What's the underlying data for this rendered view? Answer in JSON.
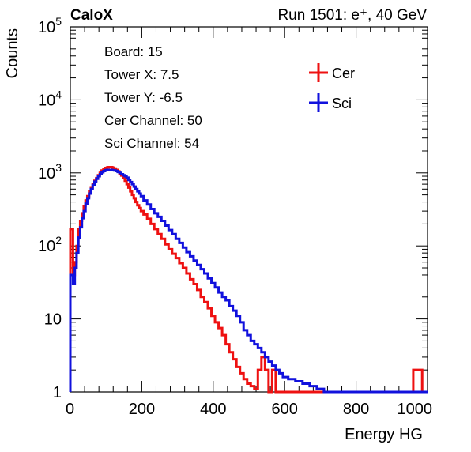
{
  "header": {
    "left_label": "CaloX",
    "right_label": "Run 1501: e⁺, 40 GeV"
  },
  "info_lines": [
    "Board: 15",
    "Tower X: 7.5",
    "Tower Y: -6.5",
    "Cer Channel: 50",
    "Sci Channel: 54"
  ],
  "chart_data": {
    "type": "line",
    "title": "",
    "xlabel": "Energy HG",
    "ylabel": "Counts",
    "xlim": [
      0,
      1000
    ],
    "ylim": [
      1,
      100000
    ],
    "y_scale": "log",
    "x_ticks": [
      0,
      200,
      400,
      600,
      800,
      1000
    ],
    "x_tick_labels": [
      "0",
      "200",
      "400",
      "600",
      "800",
      "1000"
    ],
    "y_ticks": [
      1,
      10,
      100,
      1000,
      10000,
      100000
    ],
    "y_tick_labels": [
      "1",
      "10",
      "10^2",
      "10^3",
      "10^4",
      "10^5"
    ],
    "legend_position": "top-right",
    "series": [
      {
        "name": "Cer",
        "color": "#ee1111",
        "x": [
          5,
          10,
          15,
          20,
          25,
          30,
          35,
          40,
          45,
          50,
          55,
          60,
          65,
          70,
          75,
          80,
          85,
          90,
          95,
          100,
          105,
          110,
          115,
          120,
          125,
          130,
          135,
          140,
          145,
          150,
          155,
          160,
          165,
          170,
          175,
          180,
          185,
          190,
          195,
          200,
          210,
          220,
          230,
          240,
          250,
          260,
          270,
          280,
          290,
          300,
          310,
          320,
          330,
          340,
          350,
          360,
          370,
          380,
          390,
          400,
          410,
          420,
          430,
          440,
          450,
          460,
          470,
          480,
          490,
          500,
          510,
          520,
          530,
          540,
          550,
          560,
          570,
          580,
          590,
          600,
          620,
          640,
          660,
          680,
          700,
          750,
          800,
          850,
          900,
          950,
          970,
          1000
        ],
        "values": [
          170,
          40,
          60,
          100,
          170,
          220,
          280,
          350,
          420,
          480,
          560,
          620,
          700,
          780,
          850,
          930,
          1000,
          1080,
          1130,
          1170,
          1190,
          1200,
          1200,
          1180,
          1150,
          1100,
          1050,
          980,
          920,
          850,
          780,
          700,
          630,
          560,
          500,
          450,
          400,
          360,
          330,
          300,
          270,
          235,
          200,
          170,
          145,
          125,
          105,
          90,
          78,
          68,
          58,
          50,
          42,
          35,
          30,
          25,
          20,
          17,
          14,
          11,
          9,
          7.5,
          6,
          4.5,
          3.5,
          2.8,
          2.2,
          1.8,
          1.5,
          1.3,
          1.2,
          1.1,
          2,
          3,
          2,
          1,
          2,
          1,
          1,
          1,
          0,
          0,
          1,
          0,
          0,
          0,
          0,
          0,
          0,
          0,
          2,
          0
        ]
      },
      {
        "name": "Sci",
        "color": "#1111dd",
        "x": [
          5,
          10,
          15,
          20,
          25,
          30,
          35,
          40,
          45,
          50,
          55,
          60,
          65,
          70,
          75,
          80,
          85,
          90,
          95,
          100,
          105,
          110,
          115,
          120,
          125,
          130,
          135,
          140,
          145,
          150,
          155,
          160,
          165,
          170,
          175,
          180,
          185,
          190,
          195,
          200,
          210,
          220,
          230,
          240,
          250,
          260,
          270,
          280,
          290,
          300,
          310,
          320,
          330,
          340,
          350,
          360,
          370,
          380,
          390,
          400,
          410,
          420,
          430,
          440,
          450,
          460,
          470,
          480,
          490,
          500,
          510,
          520,
          530,
          540,
          550,
          560,
          570,
          580,
          590,
          600,
          620,
          640,
          660,
          680,
          700,
          720,
          740,
          760,
          780,
          800,
          820,
          840,
          860,
          880,
          900,
          920,
          940,
          960,
          980,
          1000
        ],
        "values": [
          40,
          30,
          50,
          80,
          130,
          180,
          240,
          300,
          380,
          450,
          520,
          600,
          680,
          760,
          830,
          900,
          960,
          1020,
          1060,
          1090,
          1100,
          1100,
          1100,
          1090,
          1080,
          1060,
          1030,
          1000,
          960,
          930,
          900,
          860,
          800,
          750,
          700,
          650,
          600,
          560,
          520,
          480,
          420,
          370,
          320,
          280,
          250,
          220,
          190,
          165,
          145,
          125,
          110,
          95,
          82,
          72,
          63,
          55,
          48,
          42,
          36,
          31,
          27,
          23,
          20,
          18,
          15,
          13,
          11,
          9,
          7,
          6,
          5,
          4.5,
          4,
          3.5,
          3,
          2.6,
          2.3,
          2,
          1.8,
          1.6,
          1.5,
          1.4,
          1.3,
          1.2,
          1.1,
          1,
          0,
          1,
          0,
          1,
          0,
          1,
          0,
          0,
          1,
          0,
          0,
          0,
          0,
          1
        ]
      }
    ]
  }
}
